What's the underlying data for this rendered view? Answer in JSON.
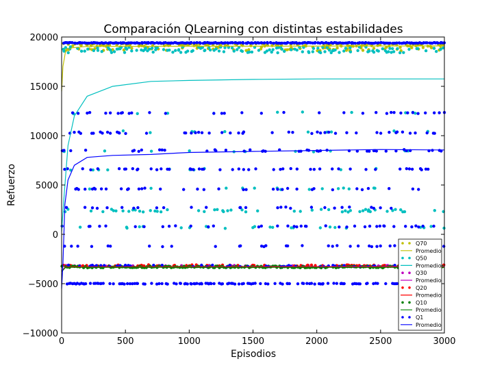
{
  "chart_data": {
    "type": "scatter",
    "title": "Comparación QLearning con distintas estabilidades",
    "xlabel": "Episodios",
    "ylabel": "Refuerzo",
    "xlim": [
      0,
      3000
    ],
    "ylim": [
      -10000,
      20000
    ],
    "xticks": [
      0,
      500,
      1000,
      1500,
      2000,
      2500,
      3000
    ],
    "yticks": [
      -10000,
      -5000,
      0,
      5000,
      10000,
      15000,
      20000
    ],
    "xtick_labels": [
      "0",
      "500",
      "1000",
      "1500",
      "2000",
      "2500",
      "3000"
    ],
    "ytick_labels": [
      "−10000",
      "−5000",
      "0",
      "5000",
      "10000",
      "15000",
      "20000"
    ],
    "grid": false,
    "legend_position": "lower-right",
    "series": [
      {
        "name": "Q70",
        "kind": "points",
        "color": "#bfbf00",
        "bands": [
          {
            "y": 19200,
            "spread": 150,
            "density": 0.5
          },
          {
            "y": 18800,
            "spread": 200,
            "density": 0.25
          }
        ]
      },
      {
        "name": "Promedio",
        "kind": "line",
        "color": "#bfbf00",
        "curve": [
          [
            0,
            14500
          ],
          [
            10,
            17000
          ],
          [
            30,
            18500
          ],
          [
            80,
            18900
          ],
          [
            200,
            19050
          ],
          [
            3000,
            19100
          ]
        ]
      },
      {
        "name": "Q50",
        "kind": "points",
        "color": "#00bfbf",
        "bands": [
          {
            "y": 18700,
            "spread": 300,
            "density": 0.6
          },
          {
            "y": 12300,
            "spread": 100,
            "density": 0.03
          },
          {
            "y": 10400,
            "spread": 100,
            "density": 0.03
          },
          {
            "y": 8400,
            "spread": 100,
            "density": 0.04
          },
          {
            "y": 6600,
            "spread": 100,
            "density": 0.05
          },
          {
            "y": 4600,
            "spread": 100,
            "density": 0.06
          },
          {
            "y": 2400,
            "spread": 150,
            "density": 0.2
          },
          {
            "y": 700,
            "spread": 100,
            "density": 0.1
          }
        ]
      },
      {
        "name": "Promedio",
        "kind": "line",
        "color": "#00bfbf",
        "curve": [
          [
            0,
            300
          ],
          [
            20,
            4000
          ],
          [
            50,
            9000
          ],
          [
            100,
            12000
          ],
          [
            200,
            14000
          ],
          [
            400,
            15000
          ],
          [
            700,
            15500
          ],
          [
            1000,
            15600
          ],
          [
            1500,
            15700
          ],
          [
            2000,
            15750
          ],
          [
            3000,
            15750
          ]
        ]
      },
      {
        "name": "Q30",
        "kind": "points",
        "color": "#bf00bf",
        "bands": [
          {
            "y": -3200,
            "spread": 50,
            "density": 0.2
          }
        ]
      },
      {
        "name": "Promedio",
        "kind": "line",
        "color": "#bf00bf",
        "curve": [
          [
            0,
            -3700
          ],
          [
            30,
            -3300
          ],
          [
            3000,
            -3250
          ]
        ]
      },
      {
        "name": "Q20",
        "kind": "points",
        "color": "#ff0000",
        "bands": [
          {
            "y": -3150,
            "spread": 60,
            "density": 0.25
          }
        ]
      },
      {
        "name": "Promedio",
        "kind": "line",
        "color": "#ff0000",
        "curve": [
          [
            0,
            -3800
          ],
          [
            30,
            -3300
          ],
          [
            3000,
            -3300
          ]
        ]
      },
      {
        "name": "Q10",
        "kind": "points",
        "color": "#008000",
        "bands": [
          {
            "y": -3300,
            "spread": 90,
            "density": 0.9
          }
        ]
      },
      {
        "name": "Promedio",
        "kind": "line",
        "color": "#008000",
        "curve": [
          [
            0,
            -3800
          ],
          [
            30,
            -3350
          ],
          [
            3000,
            -3350
          ]
        ]
      },
      {
        "name": "Q1",
        "kind": "points",
        "color": "#0000ff",
        "bands": [
          {
            "y": 19400,
            "spread": 40,
            "density": 1.0
          },
          {
            "y": 12300,
            "spread": 60,
            "density": 0.15
          },
          {
            "y": 10300,
            "spread": 80,
            "density": 0.15
          },
          {
            "y": 8500,
            "spread": 90,
            "density": 0.17
          },
          {
            "y": 6600,
            "spread": 60,
            "density": 0.17
          },
          {
            "y": 4600,
            "spread": 80,
            "density": 0.17
          },
          {
            "y": 2700,
            "spread": 70,
            "density": 0.16
          },
          {
            "y": 800,
            "spread": 60,
            "density": 0.16
          },
          {
            "y": -1200,
            "spread": 60,
            "density": 0.15
          },
          {
            "y": -3200,
            "spread": 80,
            "density": 0.2
          },
          {
            "y": -5000,
            "spread": 40,
            "density": 0.5
          }
        ]
      },
      {
        "name": "Promedio",
        "kind": "line",
        "color": "#0000ff",
        "curve": [
          [
            0,
            -5500
          ],
          [
            10,
            -3000
          ],
          [
            25,
            3000
          ],
          [
            50,
            5500
          ],
          [
            100,
            7000
          ],
          [
            200,
            7800
          ],
          [
            400,
            8000
          ],
          [
            700,
            8100
          ],
          [
            1000,
            8300
          ],
          [
            1500,
            8400
          ],
          [
            2000,
            8500
          ],
          [
            2500,
            8600
          ],
          [
            3000,
            8550
          ]
        ]
      }
    ]
  }
}
